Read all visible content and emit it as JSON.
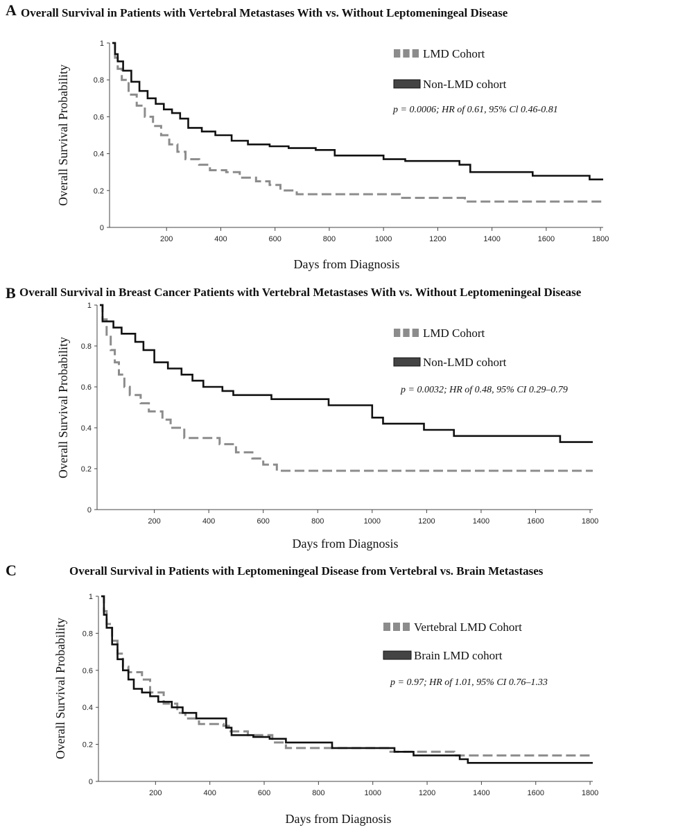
{
  "chart_data": [
    {
      "panel": "A",
      "type": "line",
      "title": "Overall Survival in Patients with Vertebral Metastases With vs. Without Leptomeningeal Disease",
      "xlabel": "Days from Diagnosis",
      "ylabel": "Overall Survival Probability",
      "xlim": [
        0,
        1810
      ],
      "ylim": [
        0,
        1
      ],
      "x_ticks": [
        200,
        400,
        600,
        800,
        1000,
        1200,
        1400,
        1600,
        1800
      ],
      "y_ticks": [
        0,
        0.2,
        0.4,
        0.6,
        0.8,
        1
      ],
      "y_tick_labels": [
        "0",
        "0.2",
        "0.4",
        "0.6",
        "0.8",
        "1"
      ],
      "legend_position": "top-right",
      "annotation": "p = 0.0006; HR of 0.61, 95% Cl 0.46-0.81",
      "series": [
        {
          "name": "LMD Cohort",
          "style": "dashed",
          "color": "#8c8c8c",
          "points": [
            [
              0,
              1
            ],
            [
              10,
              0.92
            ],
            [
              20,
              0.86
            ],
            [
              35,
              0.8
            ],
            [
              60,
              0.72
            ],
            [
              90,
              0.66
            ],
            [
              120,
              0.6
            ],
            [
              150,
              0.55
            ],
            [
              180,
              0.5
            ],
            [
              210,
              0.45
            ],
            [
              240,
              0.41
            ],
            [
              270,
              0.37
            ],
            [
              320,
              0.34
            ],
            [
              360,
              0.31
            ],
            [
              420,
              0.3
            ],
            [
              470,
              0.27
            ],
            [
              530,
              0.25
            ],
            [
              580,
              0.23
            ],
            [
              620,
              0.2
            ],
            [
              680,
              0.18
            ],
            [
              1060,
              0.16
            ],
            [
              1300,
              0.14
            ],
            [
              1810,
              0.14
            ]
          ]
        },
        {
          "name": "Non-LMD cohort",
          "style": "solid",
          "color": "#111111",
          "points": [
            [
              0,
              1
            ],
            [
              10,
              0.94
            ],
            [
              20,
              0.9
            ],
            [
              40,
              0.85
            ],
            [
              70,
              0.79
            ],
            [
              100,
              0.74
            ],
            [
              130,
              0.7
            ],
            [
              160,
              0.67
            ],
            [
              190,
              0.64
            ],
            [
              220,
              0.62
            ],
            [
              250,
              0.59
            ],
            [
              280,
              0.54
            ],
            [
              330,
              0.52
            ],
            [
              380,
              0.5
            ],
            [
              440,
              0.47
            ],
            [
              500,
              0.45
            ],
            [
              580,
              0.44
            ],
            [
              650,
              0.43
            ],
            [
              750,
              0.42
            ],
            [
              820,
              0.39
            ],
            [
              1000,
              0.37
            ],
            [
              1080,
              0.36
            ],
            [
              1280,
              0.34
            ],
            [
              1320,
              0.3
            ],
            [
              1550,
              0.28
            ],
            [
              1760,
              0.26
            ],
            [
              1810,
              0.26
            ]
          ]
        }
      ]
    },
    {
      "panel": "B",
      "type": "line",
      "title": "Overall Survival in Breast Cancer Patients with Vertebral Metastases With vs. Without Leptomeningeal Disease",
      "xlabel": "Days from Diagnosis",
      "ylabel": "Overall Survival Probability",
      "xlim": [
        0,
        1810
      ],
      "ylim": [
        0,
        1
      ],
      "x_ticks": [
        200,
        400,
        600,
        800,
        1000,
        1200,
        1400,
        1600,
        1800
      ],
      "y_ticks": [
        0,
        0.2,
        0.4,
        0.6,
        0.8,
        1
      ],
      "y_tick_labels": [
        "0",
        "0.2",
        "0.4",
        "0.6",
        "0.8",
        "1"
      ],
      "legend_position": "top-right",
      "annotation": "p = 0.0032; HR of 0.48, 95% CI 0.29–0.79",
      "series": [
        {
          "name": "LMD Cohort",
          "style": "dashed",
          "color": "#8c8c8c",
          "points": [
            [
              0,
              1
            ],
            [
              10,
              0.93
            ],
            [
              25,
              0.85
            ],
            [
              40,
              0.78
            ],
            [
              55,
              0.72
            ],
            [
              70,
              0.66
            ],
            [
              90,
              0.6
            ],
            [
              110,
              0.56
            ],
            [
              150,
              0.52
            ],
            [
              180,
              0.48
            ],
            [
              230,
              0.44
            ],
            [
              260,
              0.4
            ],
            [
              310,
              0.35
            ],
            [
              440,
              0.32
            ],
            [
              500,
              0.28
            ],
            [
              560,
              0.25
            ],
            [
              600,
              0.22
            ],
            [
              650,
              0.19
            ],
            [
              1810,
              0.19
            ]
          ]
        },
        {
          "name": "Non-LMD cohort",
          "style": "solid",
          "color": "#111111",
          "points": [
            [
              0,
              1
            ],
            [
              10,
              0.92
            ],
            [
              50,
              0.89
            ],
            [
              80,
              0.86
            ],
            [
              130,
              0.82
            ],
            [
              160,
              0.78
            ],
            [
              200,
              0.72
            ],
            [
              250,
              0.69
            ],
            [
              300,
              0.66
            ],
            [
              340,
              0.63
            ],
            [
              380,
              0.6
            ],
            [
              450,
              0.58
            ],
            [
              490,
              0.56
            ],
            [
              630,
              0.54
            ],
            [
              840,
              0.51
            ],
            [
              1000,
              0.45
            ],
            [
              1040,
              0.42
            ],
            [
              1190,
              0.39
            ],
            [
              1300,
              0.36
            ],
            [
              1690,
              0.33
            ],
            [
              1810,
              0.33
            ]
          ]
        }
      ]
    },
    {
      "panel": "C",
      "type": "line",
      "title": "Overall Survival in Patients with Leptomeningeal Disease from Vertebral vs. Brain Metastases",
      "xlabel": "Days from Diagnosis",
      "ylabel": "Overall Survival Probability",
      "xlim": [
        0,
        1810
      ],
      "ylim": [
        0,
        1
      ],
      "x_ticks": [
        200,
        400,
        600,
        800,
        1000,
        1200,
        1400,
        1600,
        1800
      ],
      "y_ticks": [
        0,
        0.2,
        0.4,
        0.6,
        0.8,
        1
      ],
      "y_tick_labels": [
        "0",
        "0.2",
        "0.4",
        "0.6",
        "0.8",
        "1"
      ],
      "legend_position": "top-right",
      "annotation": "p = 0.97; HR of 1.01, 95% CI 0.76–1.33",
      "series": [
        {
          "name": "Vertebral LMD Cohort",
          "style": "dashed",
          "color": "#8c8c8c",
          "points": [
            [
              0,
              1
            ],
            [
              10,
              0.92
            ],
            [
              20,
              0.85
            ],
            [
              40,
              0.76
            ],
            [
              60,
              0.69
            ],
            [
              80,
              0.62
            ],
            [
              100,
              0.59
            ],
            [
              150,
              0.55
            ],
            [
              180,
              0.48
            ],
            [
              230,
              0.42
            ],
            [
              280,
              0.37
            ],
            [
              310,
              0.34
            ],
            [
              360,
              0.31
            ],
            [
              450,
              0.3
            ],
            [
              470,
              0.27
            ],
            [
              540,
              0.25
            ],
            [
              630,
              0.21
            ],
            [
              680,
              0.18
            ],
            [
              1060,
              0.16
            ],
            [
              1300,
              0.14
            ],
            [
              1810,
              0.14
            ]
          ]
        },
        {
          "name": "Brain LMD cohort",
          "style": "solid",
          "color": "#111111",
          "points": [
            [
              0,
              1
            ],
            [
              10,
              0.9
            ],
            [
              20,
              0.83
            ],
            [
              40,
              0.74
            ],
            [
              60,
              0.66
            ],
            [
              80,
              0.6
            ],
            [
              100,
              0.55
            ],
            [
              120,
              0.5
            ],
            [
              150,
              0.48
            ],
            [
              180,
              0.46
            ],
            [
              210,
              0.43
            ],
            [
              260,
              0.4
            ],
            [
              300,
              0.37
            ],
            [
              350,
              0.34
            ],
            [
              460,
              0.29
            ],
            [
              480,
              0.25
            ],
            [
              560,
              0.24
            ],
            [
              620,
              0.23
            ],
            [
              680,
              0.21
            ],
            [
              850,
              0.18
            ],
            [
              1080,
              0.16
            ],
            [
              1150,
              0.14
            ],
            [
              1320,
              0.12
            ],
            [
              1350,
              0.1
            ],
            [
              1810,
              0.1
            ]
          ]
        }
      ]
    }
  ]
}
